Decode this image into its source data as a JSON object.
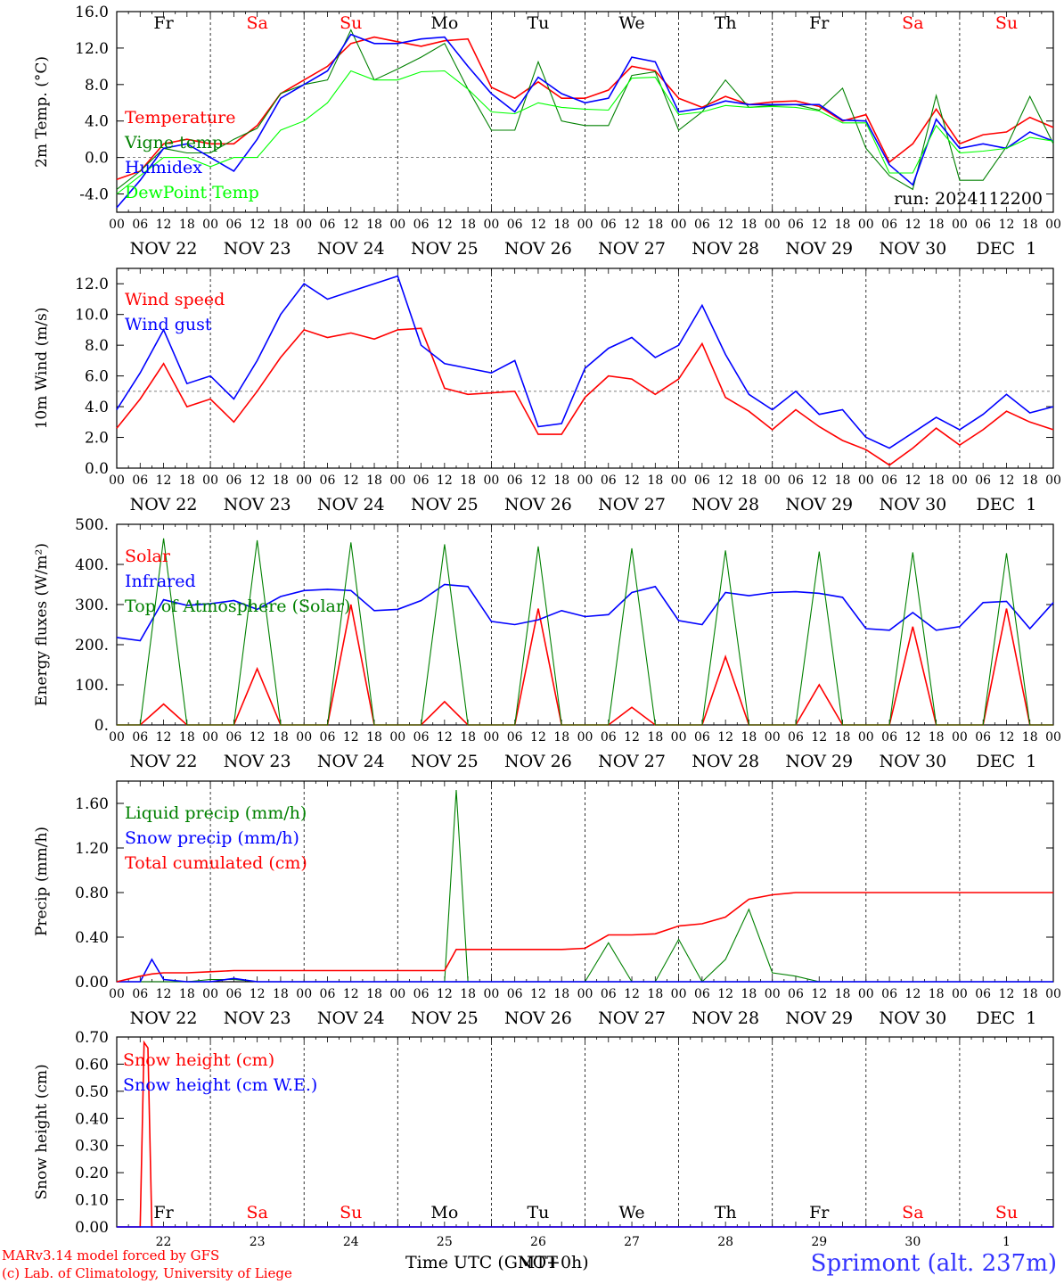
{
  "footer": {
    "model_line": "MARv3.14 model forced by GFS",
    "copyright": "(c) Lab. of Climatology, University of Liege",
    "station": "Sprimont (alt. 237m)",
    "time_label": "Time UTC (GMT+0h)",
    "time_label_overlay": "NOT",
    "run": "run: 2024112200"
  },
  "colors": {
    "red": "#ff0000",
    "green": "#008000",
    "blue": "#0000ff",
    "lightgreen": "#00ff00",
    "weekend": "#ff0000",
    "weekday": "#000000"
  },
  "chart_data": [
    {
      "type": "line",
      "ylabel": "2m Temp. (°C)",
      "ylim": [
        -6,
        16
      ],
      "yticks": [
        "16.0",
        "12.0",
        "8.0",
        "4.0",
        "0.0",
        "-4.0"
      ],
      "ytick_values": [
        16,
        12,
        8,
        4,
        0,
        -4
      ],
      "ref_line": 0,
      "hours": [
        0,
        6,
        12,
        18,
        24,
        30,
        36,
        42,
        48,
        54,
        60,
        66,
        72,
        78,
        84,
        90,
        96,
        102,
        108,
        114,
        120,
        126,
        132,
        138,
        144,
        150,
        156,
        162,
        168,
        174,
        180,
        186,
        192,
        198,
        204,
        210,
        216,
        222,
        228,
        234,
        240
      ],
      "series": [
        {
          "name": "Temperature",
          "color": "#ff0000",
          "values": [
            -2.4,
            -1.5,
            1.5,
            2,
            1.5,
            1.5,
            3.5,
            7,
            8.5,
            10,
            12.5,
            13.2,
            12.7,
            12.2,
            12.8,
            13,
            7.7,
            6.5,
            8.3,
            6.5,
            6.5,
            7.4,
            10,
            9.5,
            6.5,
            5.5,
            6.7,
            5.8,
            6.1,
            6.2,
            5.6,
            4,
            4.7,
            -0.5,
            1.5,
            5.3,
            1.5,
            2.5,
            2.8,
            4.4,
            3.3
          ]
        },
        {
          "name": "Vigne temp",
          "color": "#008000",
          "values": [
            -3.5,
            -1.5,
            1,
            0.5,
            0.5,
            2,
            3.2,
            7,
            8,
            8.5,
            14,
            8.5,
            9.7,
            11,
            12.5,
            7.5,
            3,
            3,
            10.5,
            4,
            3.5,
            3.5,
            9,
            9.4,
            3,
            5,
            8.5,
            5.5,
            5.7,
            5.8,
            5.2,
            7.6,
            1,
            -2,
            -3.5,
            6.8,
            -2.5,
            -2.5,
            1.2,
            6.7,
            1.5
          ]
        },
        {
          "name": "Humidex",
          "color": "#0000ff",
          "values": [
            -5.5,
            -2.5,
            1,
            1.5,
            0,
            -1.5,
            2,
            6.5,
            8,
            9.5,
            13.5,
            12.5,
            12.5,
            13,
            13.2,
            10,
            7,
            5,
            8.8,
            7,
            6,
            6.5,
            11,
            10.5,
            5,
            5.4,
            6.2,
            5.8,
            5.8,
            5.8,
            5.8,
            4.1,
            4,
            -0.8,
            -3,
            4.2,
            1,
            1.5,
            1,
            2.8,
            1.8
          ]
        },
        {
          "name": "DewPoint Temp",
          "color": "#00ff00",
          "values": [
            -4,
            -2,
            0,
            0,
            -1,
            0,
            0,
            3,
            4,
            6,
            9.5,
            8.5,
            8.5,
            9.4,
            9.5,
            7.5,
            5,
            4.8,
            6,
            5.5,
            5.3,
            5.2,
            8.7,
            8.8,
            4.7,
            5,
            5.7,
            5.5,
            5.6,
            5.5,
            5.1,
            3.8,
            3.8,
            -1.7,
            -1.7,
            3.5,
            0.5,
            0.7,
            1,
            2.2,
            1.8
          ]
        }
      ],
      "day_letters": [
        {
          "label": "Fr",
          "weekend": false
        },
        {
          "label": "Sa",
          "weekend": true
        },
        {
          "label": "Su",
          "weekend": true
        },
        {
          "label": "Mo",
          "weekend": false
        },
        {
          "label": "Tu",
          "weekend": false
        },
        {
          "label": "We",
          "weekend": false
        },
        {
          "label": "Th",
          "weekend": false
        },
        {
          "label": "Fr",
          "weekend": false
        },
        {
          "label": "Sa",
          "weekend": true
        },
        {
          "label": "Su",
          "weekend": true
        }
      ]
    },
    {
      "type": "line",
      "ylabel": "10m Wind (m/s)",
      "ylim": [
        0,
        13
      ],
      "yticks": [
        "12.0",
        "10.0",
        "8.0",
        "6.0",
        "4.0",
        "2.0",
        "0.0"
      ],
      "ytick_values": [
        12,
        10,
        8,
        6,
        4,
        2,
        0
      ],
      "ref_line": 5,
      "hours": [
        0,
        6,
        12,
        18,
        24,
        30,
        36,
        42,
        48,
        54,
        60,
        66,
        72,
        78,
        84,
        90,
        96,
        102,
        108,
        114,
        120,
        126,
        132,
        138,
        144,
        150,
        156,
        162,
        168,
        174,
        180,
        186,
        192,
        198,
        204,
        210,
        216,
        222,
        228,
        234,
        240
      ],
      "series": [
        {
          "name": "Wind speed",
          "color": "#ff0000",
          "values": [
            2.6,
            4.5,
            6.8,
            4,
            4.5,
            3,
            5,
            7.2,
            9,
            8.5,
            8.8,
            8.4,
            9,
            9.1,
            5.2,
            4.8,
            4.9,
            5,
            2.2,
            2.2,
            4.6,
            6,
            5.8,
            4.8,
            5.8,
            8.1,
            4.6,
            3.7,
            2.5,
            3.8,
            2.7,
            1.8,
            1.2,
            0.2,
            1.3,
            2.6,
            1.5,
            2.5,
            3.7,
            3,
            2.5
          ]
        },
        {
          "name": "Wind gust",
          "color": "#0000ff",
          "values": [
            3.8,
            6.2,
            9,
            5.5,
            6,
            4.5,
            7,
            10,
            12,
            11,
            11.5,
            12,
            12.5,
            8,
            6.8,
            6.5,
            6.2,
            7,
            2.7,
            2.9,
            6.5,
            7.8,
            8.5,
            7.2,
            8,
            10.6,
            7.4,
            4.8,
            3.8,
            5,
            3.5,
            3.8,
            2,
            1.3,
            2.3,
            3.3,
            2.5,
            3.5,
            4.8,
            3.6,
            4
          ]
        }
      ]
    },
    {
      "type": "line",
      "ylabel": "Energy fluxes (W/m²)",
      "ylim": [
        0,
        500
      ],
      "yticks": [
        "500.",
        "400.",
        "300.",
        "200.",
        "100.",
        "0."
      ],
      "ytick_values": [
        500,
        400,
        300,
        200,
        100,
        0
      ],
      "hours": [
        0,
        6,
        12,
        18,
        24,
        30,
        36,
        42,
        48,
        54,
        60,
        66,
        72,
        78,
        84,
        90,
        96,
        102,
        108,
        114,
        120,
        126,
        132,
        138,
        144,
        150,
        156,
        162,
        168,
        174,
        180,
        186,
        192,
        198,
        204,
        210,
        216,
        222,
        228,
        234,
        240
      ],
      "series": [
        {
          "name": "Solar",
          "color": "#ff0000",
          "values": [
            0,
            0,
            52,
            0,
            0,
            0,
            140,
            0,
            0,
            0,
            300,
            0,
            0,
            0,
            58,
            0,
            0,
            0,
            290,
            0,
            0,
            0,
            44,
            0,
            0,
            0,
            170,
            0,
            0,
            0,
            100,
            0,
            0,
            0,
            245,
            0,
            0,
            0,
            290,
            0,
            0
          ]
        },
        {
          "name": "Infrared",
          "color": "#0000ff",
          "values": [
            218,
            210,
            312,
            298,
            302,
            310,
            288,
            320,
            335,
            338,
            335,
            285,
            288,
            310,
            350,
            345,
            258,
            250,
            262,
            285,
            270,
            275,
            330,
            345,
            260,
            250,
            330,
            322,
            330,
            332,
            328,
            318,
            240,
            236,
            280,
            236,
            245,
            305,
            308,
            240,
            305
          ]
        },
        {
          "name": "Top of Atmosphere (Solar)",
          "color": "#008000",
          "values": [
            0,
            0,
            465,
            0,
            0,
            0,
            460,
            0,
            0,
            0,
            455,
            0,
            0,
            0,
            450,
            0,
            0,
            0,
            445,
            0,
            0,
            0,
            440,
            0,
            0,
            0,
            435,
            0,
            0,
            0,
            432,
            0,
            0,
            0,
            430,
            0,
            0,
            0,
            428,
            0,
            0
          ]
        }
      ]
    },
    {
      "type": "line",
      "ylabel": "Precip (mm/h)",
      "ylim": [
        0,
        1.8
      ],
      "yticks": [
        "1.60",
        "1.20",
        "0.80",
        "0.40",
        "0.00"
      ],
      "ytick_values": [
        1.6,
        1.2,
        0.8,
        0.4,
        0
      ],
      "hours": [
        0,
        6,
        9,
        12,
        18,
        24,
        30,
        36,
        42,
        48,
        54,
        60,
        66,
        72,
        78,
        84,
        87,
        90,
        96,
        102,
        108,
        114,
        120,
        126,
        132,
        138,
        144,
        150,
        156,
        162,
        168,
        174,
        180,
        186,
        192,
        198,
        204,
        210,
        216,
        222,
        228,
        234,
        240
      ],
      "series": [
        {
          "name": "Liquid precip (mm/h)",
          "color": "#008000",
          "values": [
            0,
            0,
            0,
            0,
            0,
            0.02,
            0.02,
            0,
            0,
            0,
            0,
            0,
            0,
            0,
            0,
            0,
            1.72,
            0,
            0,
            0,
            0,
            0,
            0,
            0.35,
            0,
            0,
            0.38,
            0,
            0.2,
            0.65,
            0.08,
            0.05,
            0,
            0,
            0,
            0,
            0,
            0,
            0,
            0,
            0,
            0,
            0
          ]
        },
        {
          "name": "Snow precip (mm/h)",
          "color": "#0000ff",
          "values": [
            0,
            0,
            0.2,
            0.02,
            0,
            0,
            0.03,
            0,
            0,
            0,
            0,
            0,
            0,
            0,
            0,
            0,
            0,
            0,
            0,
            0,
            0,
            0,
            0,
            0,
            0,
            0,
            0,
            0,
            0,
            0,
            0,
            0,
            0,
            0,
            0,
            0,
            0,
            0,
            0,
            0,
            0,
            0,
            0
          ]
        },
        {
          "name": "Total cumulated (cm)",
          "color": "#ff0000",
          "values": [
            0,
            0.05,
            0.07,
            0.08,
            0.08,
            0.09,
            0.1,
            0.1,
            0.1,
            0.1,
            0.1,
            0.1,
            0.1,
            0.1,
            0.1,
            0.1,
            0.29,
            0.29,
            0.29,
            0.29,
            0.29,
            0.29,
            0.3,
            0.42,
            0.42,
            0.43,
            0.5,
            0.52,
            0.58,
            0.74,
            0.78,
            0.8,
            0.8,
            0.8,
            0.8,
            0.8,
            0.8,
            0.8,
            0.8,
            0.8,
            0.8,
            0.8,
            0.8
          ]
        }
      ]
    },
    {
      "type": "line",
      "ylabel": "Snow height (cm)",
      "ylim": [
        0,
        0.7
      ],
      "yticks": [
        "0.70",
        "0.60",
        "0.50",
        "0.40",
        "0.30",
        "0.20",
        "0.10",
        "0.00"
      ],
      "ytick_values": [
        0.7,
        0.6,
        0.5,
        0.4,
        0.3,
        0.2,
        0.1,
        0
      ],
      "hours": [
        0,
        6,
        7,
        8,
        9,
        10,
        240
      ],
      "series": [
        {
          "name": "Snow height (cm)",
          "color": "#ff0000",
          "values": [
            0,
            0,
            0.68,
            0.66,
            0,
            0,
            0
          ]
        },
        {
          "name": "Snow height (cm W.E.)",
          "color": "#0000ff",
          "values": [
            0,
            0,
            0,
            0,
            0,
            0,
            0
          ]
        }
      ],
      "day_letters": [
        {
          "label": "Fr",
          "weekend": false
        },
        {
          "label": "Sa",
          "weekend": true
        },
        {
          "label": "Su",
          "weekend": true
        },
        {
          "label": "Mo",
          "weekend": false
        },
        {
          "label": "Tu",
          "weekend": false
        },
        {
          "label": "We",
          "weekend": false
        },
        {
          "label": "Th",
          "weekend": false
        },
        {
          "label": "Fr",
          "weekend": false
        },
        {
          "label": "Sa",
          "weekend": true
        },
        {
          "label": "Su",
          "weekend": true
        }
      ],
      "day_numbers": [
        "22",
        "23",
        "24",
        "25",
        "26",
        "27",
        "28",
        "29",
        "30",
        "1"
      ]
    }
  ],
  "x_axis": {
    "hour_ticks": [
      "00",
      "06",
      "12",
      "18"
    ],
    "end_tick": "00",
    "dates": [
      "NOV 22",
      "NOV 23",
      "NOV 24",
      "NOV 25",
      "NOV 26",
      "NOV 27",
      "NOV 28",
      "NOV 29",
      "NOV 30",
      "DEC  1"
    ]
  }
}
